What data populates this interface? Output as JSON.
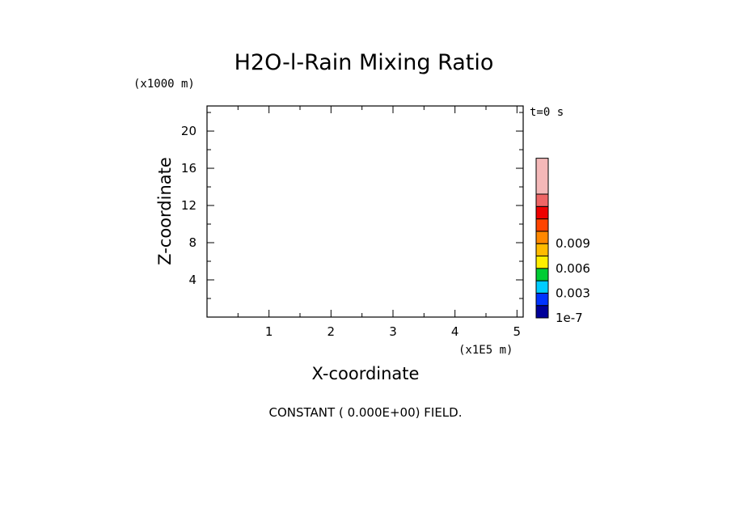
{
  "chart_data": {
    "type": "heatmap",
    "title": "H2O-l-Rain Mixing Ratio",
    "xlabel": "X-coordinate",
    "ylabel": "Z-coordinate",
    "x_unit": "(x1E5 m)",
    "y_unit": "(x1000 m)",
    "time_label": "t=0 s",
    "note": "CONSTANT ( 0.000E+00) FIELD.",
    "xlim": [
      0,
      5.1
    ],
    "ylim": [
      0,
      22.7
    ],
    "x_ticks": [
      1,
      2,
      3,
      4,
      5
    ],
    "y_ticks": [
      4,
      8,
      12,
      16,
      20
    ],
    "x_tick_labels": [
      "1",
      "2",
      "3",
      "4",
      "5"
    ],
    "y_tick_labels": [
      "4",
      "8",
      "12",
      "16",
      "20"
    ],
    "field_value": 0,
    "grid": false,
    "colorbar": {
      "colors": [
        "#000099",
        "#0033ff",
        "#00ccff",
        "#00cc33",
        "#ffee00",
        "#ffbb00",
        "#ff8800",
        "#ff4400",
        "#ee0000",
        "#ee6666",
        "#f4b8b8"
      ],
      "labels": [
        "1e-7",
        "0.003",
        "0.006",
        "0.009"
      ],
      "label_positions": [
        0,
        2,
        4,
        6
      ]
    }
  }
}
